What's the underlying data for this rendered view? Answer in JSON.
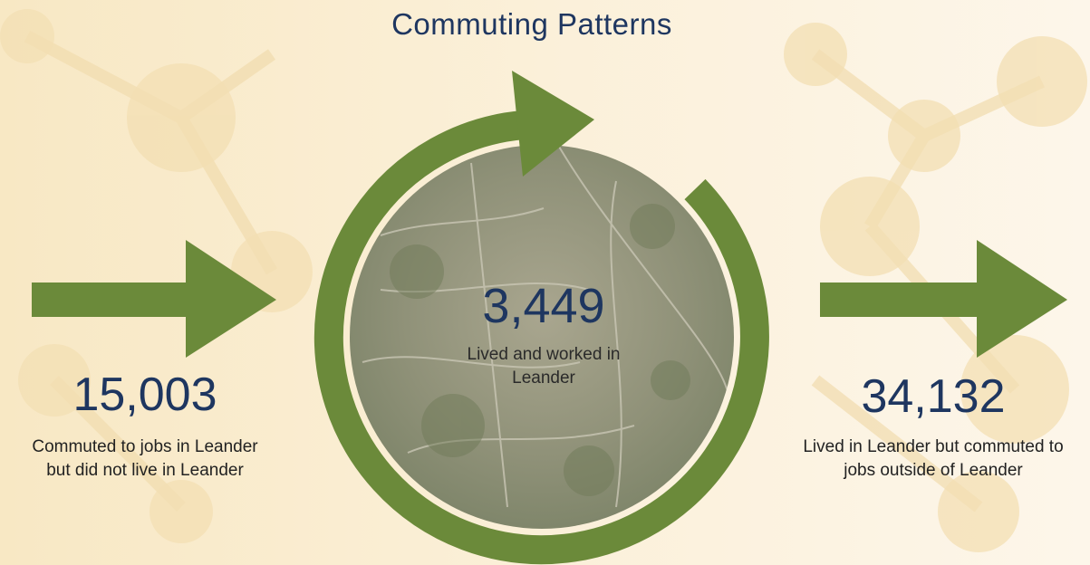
{
  "title": "Commuting Patterns",
  "stats": [
    {
      "value": "15,003",
      "label": "Commuted to jobs in Leander but did not live in Leander"
    },
    {
      "value": "3,449",
      "label": "Lived and worked in Leander"
    },
    {
      "value": "34,132",
      "label": "Lived in Leander but commuted to jobs outside of Leander"
    }
  ]
}
